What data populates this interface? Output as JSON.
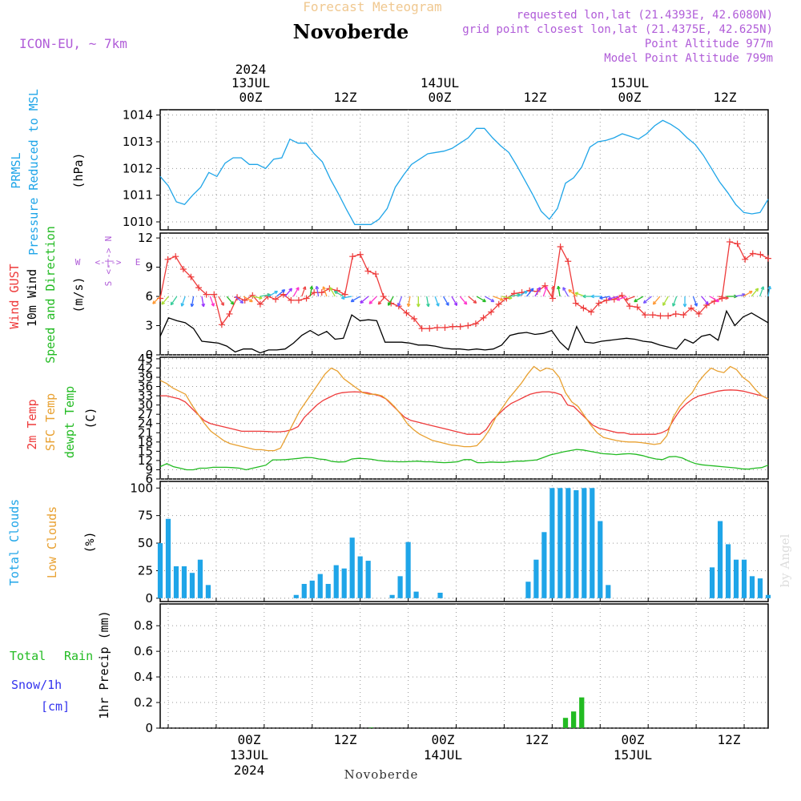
{
  "colors": {
    "pressure": "#1fa5e8",
    "gust": "#ee3a3a",
    "wind10m": "#000000",
    "label_green": "#22bb22",
    "temp2m": "#ee3a3a",
    "sfc_temp": "#e8a030",
    "dewpt": "#22bb22",
    "clouds": "#1fa5e8",
    "low_clouds": "#e8a030",
    "rain": "#22bb22",
    "snow": "#3333ee",
    "purple": "#b05cd8",
    "title_faded": "#f0c890",
    "grid": "#999999"
  },
  "header": {
    "forecast_title": "Forecast Meteogram",
    "location": "Novoberde",
    "model": "ICON-EU, ~ 7km",
    "requested": "requested lon,lat (21.4393E, 42.6080N)",
    "grid_point": "grid point closest lon,lat (21.4375E, 42.625N)",
    "point_alt": "Point Altitude 977m",
    "model_alt": "Model Point Altitude 799m"
  },
  "top_axis": {
    "year": "2024",
    "date1": "13JUL",
    "date2": "14JUL",
    "date3": "15JUL",
    "t00z_1": "00Z",
    "t12z_1": "12Z",
    "t00z_2": "00Z",
    "t12z_2": "12Z",
    "t00z_3": "00Z",
    "t12z_3": "12Z"
  },
  "bottom_axis": {
    "year": "2024",
    "date1": "13JUL",
    "date2": "14JUL",
    "date3": "15JUL",
    "t00z_1": "00Z",
    "t12z_1": "12Z",
    "t00z_2": "00Z",
    "t12z_2": "12Z",
    "t00z_3": "00Z",
    "t12z_3": "12Z",
    "footer": "Novoberde"
  },
  "watermark": "by Angel",
  "panel_labels": {
    "prmsl": "PRMSL",
    "pressure": "Pressure Reduced to MSL",
    "hpa": "(hPa)",
    "gust": "Wind GUST",
    "wind10m": "10m Wind",
    "speed_dir": "Speed and Direction",
    "ms": "(m/s)",
    "compass_n": "N",
    "compass_s": "S",
    "compass_w": "W",
    "compass_e": "E",
    "compass_arrow": "<-|->",
    "temp2m": "2m Temp",
    "sfc_temp": "SFC Temp",
    "dewpt": "dewpt Temp",
    "celsius": "(C)",
    "total_clouds": "Total Clouds",
    "low_clouds": "Low Clouds",
    "pct": "(%)",
    "total": "Total",
    "rain": "Rain",
    "snow": "Snow/1h",
    "cm": "[cm]",
    "precip": "1hr Precip (mm)"
  },
  "chart_data": [
    {
      "type": "line",
      "title": "PRMSL Pressure Reduced to MSL",
      "ylabel": "(hPa)",
      "ylim": [
        1009.7,
        1014.2
      ],
      "yticks": [
        1010,
        1011,
        1012,
        1013,
        1014
      ],
      "x_hours_start": -13,
      "x_hours_end": 63,
      "series": [
        {
          "name": "PRMSL",
          "values": [
            1011.7,
            1011.35,
            1010.75,
            1010.65,
            1011.0,
            1011.3,
            1011.85,
            1011.7,
            1012.2,
            1012.4,
            1012.4,
            1012.15,
            1012.15,
            1012.0,
            1012.35,
            1012.4,
            1013.1,
            1012.95,
            1012.95,
            1012.55,
            1012.25,
            1011.6,
            1011.05,
            1010.45,
            1009.9,
            1009.9,
            1009.9,
            1010.1,
            1010.5,
            1011.3,
            1011.75,
            1012.15,
            1012.35,
            1012.55,
            1012.6,
            1012.65,
            1012.75,
            1012.95,
            1013.15,
            1013.5,
            1013.5,
            1013.15,
            1012.85,
            1012.6,
            1012.1,
            1011.55,
            1011.0,
            1010.4,
            1010.1,
            1010.5,
            1011.45,
            1011.65,
            1012.05,
            1012.8,
            1013.0,
            1013.05,
            1013.15,
            1013.3,
            1013.2,
            1013.1,
            1013.3,
            1013.6,
            1013.8,
            1013.65,
            1013.45,
            1013.15,
            1012.9,
            1012.5,
            1012.0,
            1011.5,
            1011.1,
            1010.65,
            1010.35,
            1010.3,
            1010.35,
            1010.85
          ]
        }
      ]
    },
    {
      "type": "line",
      "title": "Wind GUST / 10m Wind Speed and Direction",
      "ylabel": "(m/s)",
      "ylim": [
        0,
        12.5
      ],
      "yticks": [
        0,
        3,
        6,
        9,
        12
      ],
      "x_hours_start": -13,
      "x_hours_end": 63,
      "series": [
        {
          "name": "Wind GUST",
          "values": [
            5.8,
            9.8,
            10.1,
            8.8,
            8.0,
            6.9,
            6.2,
            6.2,
            3.1,
            4.2,
            5.9,
            5.6,
            6.1,
            5.2,
            6.0,
            5.7,
            6.2,
            5.6,
            5.6,
            5.8,
            6.4,
            6.4,
            6.8,
            6.6,
            6.2,
            10.1,
            10.3,
            8.6,
            8.3,
            6.0,
            5.3,
            5.0,
            4.3,
            3.7,
            2.7,
            2.7,
            2.8,
            2.8,
            2.9,
            2.9,
            3.0,
            3.2,
            3.8,
            4.4,
            5.2,
            5.8,
            6.3,
            6.4,
            6.6,
            6.5,
            7.1,
            5.8,
            11.1,
            9.6,
            5.3,
            4.8,
            4.4,
            5.3,
            5.6,
            5.7,
            6.1,
            5.0,
            4.9,
            4.1,
            4.1,
            4.0,
            4.0,
            4.2,
            4.1,
            4.8,
            4.2,
            5.1,
            5.5,
            5.8,
            11.6,
            11.4,
            9.8,
            10.4,
            10.3,
            9.9
          ]
        },
        {
          "name": "10m Wind",
          "values": [
            1.9,
            3.8,
            3.5,
            3.3,
            2.7,
            1.4,
            1.3,
            1.2,
            0.9,
            0.3,
            0.6,
            0.6,
            0.2,
            0.5,
            0.5,
            0.6,
            1.2,
            2.0,
            2.5,
            2.0,
            2.4,
            1.6,
            1.7,
            4.1,
            3.5,
            3.6,
            3.5,
            1.3,
            1.3,
            1.3,
            1.2,
            1.0,
            1.0,
            0.9,
            0.7,
            0.6,
            0.6,
            0.5,
            0.6,
            0.5,
            0.6,
            1.0,
            2.0,
            2.2,
            2.3,
            2.1,
            2.2,
            2.5,
            1.3,
            0.5,
            2.9,
            1.3,
            1.2,
            1.4,
            1.5,
            1.6,
            1.7,
            1.6,
            1.4,
            1.3,
            1.0,
            0.8,
            0.6,
            1.6,
            1.2,
            1.9,
            2.1,
            1.5,
            4.5,
            3.0,
            3.9,
            4.3,
            3.8,
            3.3
          ]
        }
      ]
    },
    {
      "type": "line",
      "title": "2m Temp / SFC Temp / dewpt Temp",
      "ylabel": "(C)",
      "ylim": [
        6,
        45.5
      ],
      "yticks": [
        6,
        9,
        12,
        15,
        18,
        21,
        24,
        27,
        30,
        33,
        36,
        39,
        42,
        45
      ],
      "x_hours_start": -13,
      "x_hours_end": 63,
      "series": [
        {
          "name": "2m Temp",
          "values": [
            33,
            33,
            32.5,
            32,
            31,
            29,
            27,
            25,
            24,
            23.5,
            23,
            22.5,
            22,
            21.5,
            21.5,
            21.5,
            21.5,
            21.4,
            21.3,
            21.3,
            21.5,
            22,
            23,
            26,
            28,
            30,
            31.5,
            32.5,
            33.5,
            34,
            34.2,
            34.3,
            34.2,
            34,
            33.5,
            33,
            32,
            30,
            28,
            26,
            25,
            24.5,
            24,
            23.5,
            23,
            22.5,
            22,
            21.5,
            21,
            20.5,
            20.5,
            20.5,
            22,
            25,
            27,
            29,
            30.5,
            31.5,
            32.5,
            33.5,
            34,
            34.3,
            34.3,
            34,
            33.3,
            30,
            29.5,
            27.5,
            25.5,
            23.5,
            22.5,
            22,
            21.5,
            21,
            21,
            20.5,
            20.5,
            20.5,
            20.5,
            20.5,
            21,
            22,
            25.5,
            28.5,
            30.5,
            32,
            33,
            33.5,
            34,
            34.5,
            34.8,
            34.9,
            34.8,
            34.5,
            34,
            33.5,
            33,
            32
          ]
        },
        {
          "name": "SFC Temp",
          "values": [
            38,
            37,
            35.5,
            34.5,
            33.5,
            30,
            27,
            24,
            21.5,
            20,
            18.5,
            17.5,
            17,
            16.5,
            16,
            15.5,
            15.5,
            15.2,
            15.2,
            16,
            20,
            24,
            28,
            31,
            34,
            37,
            40,
            42,
            41,
            38.5,
            37,
            35.5,
            34,
            33.5,
            33.5,
            33,
            31.5,
            29.5,
            27,
            24,
            22,
            20.5,
            19.5,
            18.5,
            18,
            17.5,
            17,
            16.8,
            16.5,
            16.5,
            16.8,
            19,
            22,
            26,
            29,
            32,
            34.5,
            37,
            40,
            42.5,
            41,
            42,
            41.5,
            39,
            34,
            31,
            29.5,
            26.5,
            23.5,
            21,
            19.5,
            19,
            18.5,
            18.2,
            18,
            18,
            17.8,
            17.5,
            17.2,
            17.5,
            20,
            26,
            29.5,
            32,
            34,
            37.5,
            40,
            42,
            41,
            40.5,
            42.5,
            41.5,
            39,
            37.5,
            35,
            33,
            32
          ]
        },
        {
          "name": "dewpt Temp",
          "values": [
            10,
            11,
            10,
            9.5,
            9,
            9,
            9.5,
            9.5,
            9.8,
            9.8,
            9.8,
            9.7,
            9.5,
            9,
            9.5,
            10,
            10.5,
            12.2,
            12.2,
            12.3,
            12.5,
            12.7,
            13,
            12.9,
            12.5,
            12.3,
            11.7,
            11.5,
            11.6,
            12.5,
            12.7,
            12.6,
            12.4,
            12,
            11.8,
            11.7,
            11.6,
            11.6,
            11.7,
            11.8,
            11.6,
            11.6,
            11.4,
            11.3,
            11.4,
            11.6,
            12.3,
            12.3,
            11.3,
            11.3,
            11.5,
            11.4,
            11.4,
            11.6,
            11.8,
            11.8,
            12,
            12.2,
            13,
            13.8,
            14.3,
            14.8,
            15.2,
            15.6,
            15.4,
            15,
            14.6,
            14.2,
            14.1,
            13.9,
            14.1,
            14.2,
            14,
            13.6,
            13,
            12.5,
            12.3,
            13.2,
            13.3,
            12.8,
            11.8,
            11,
            10.6,
            10.4,
            10.2,
            10,
            9.8,
            9.6,
            9.3,
            9.2,
            9.5,
            9.7,
            10.5
          ]
        }
      ]
    },
    {
      "type": "bar",
      "title": "Total Clouds / Low Clouds",
      "ylabel": "(%)",
      "ylim": [
        -3,
        106
      ],
      "yticks": [
        0,
        25,
        50,
        75,
        100
      ],
      "x_hours_start": -13,
      "x_hours_end": 63,
      "series": [
        {
          "name": "Total Clouds",
          "values": [
            50,
            72,
            29,
            29,
            23,
            35,
            12,
            0,
            0,
            0,
            0,
            0,
            0,
            0,
            0,
            0,
            0,
            3,
            13,
            16,
            22,
            13,
            30,
            27,
            55,
            38,
            34,
            0,
            0,
            3,
            20,
            51,
            6,
            0,
            0,
            5,
            0,
            0,
            0,
            0,
            0,
            0,
            0,
            0,
            0,
            0,
            15,
            35,
            60,
            100,
            100,
            100,
            98,
            100,
            100,
            70,
            12,
            0,
            0,
            0,
            0,
            0,
            0,
            0,
            0,
            0,
            0,
            0,
            0,
            28,
            70,
            49,
            35,
            35,
            20,
            18,
            3
          ]
        },
        {
          "name": "Low Clouds",
          "values": [
            0,
            0,
            0,
            0,
            0,
            0,
            0,
            0,
            0,
            0,
            0,
            0,
            0,
            0,
            0,
            0,
            0,
            0,
            0,
            0,
            0,
            0,
            0,
            0,
            0,
            0,
            0,
            0,
            0,
            0,
            0,
            0,
            0,
            0,
            0,
            0,
            0,
            0,
            0,
            0,
            0,
            0,
            0,
            0,
            0,
            0,
            0,
            0,
            0,
            0,
            0,
            0,
            0,
            0,
            0,
            0,
            0,
            0,
            0,
            0,
            0,
            0,
            0,
            0,
            0,
            0,
            0,
            0,
            0,
            0,
            0,
            0,
            0,
            0,
            0,
            0,
            0
          ]
        }
      ]
    },
    {
      "type": "bar",
      "title": "Total Rain / Snow 1hr Precip",
      "ylabel": "1hr Precip (mm)",
      "ylim": [
        0,
        0.97
      ],
      "yticks": [
        0,
        0.2,
        0.4,
        0.6,
        0.8
      ],
      "x_hours_start": -13,
      "x_hours_end": 63,
      "series": [
        {
          "name": "Total Rain",
          "values": [
            0,
            0,
            0,
            0,
            0,
            0,
            0,
            0,
            0,
            0,
            0,
            0,
            0,
            0,
            0,
            0,
            0,
            0,
            0,
            0,
            0,
            0,
            0,
            0,
            0,
            0,
            0.005,
            0,
            0,
            0,
            0,
            0,
            0,
            0,
            0,
            0,
            0,
            0,
            0,
            0,
            0,
            0,
            0,
            0,
            0,
            0,
            0,
            0,
            0,
            0,
            0.08,
            0.13,
            0.24,
            0,
            0,
            0,
            0,
            0,
            0,
            0,
            0,
            0,
            0,
            0,
            0,
            0,
            0,
            0,
            0,
            0,
            0,
            0,
            0,
            0,
            0,
            0
          ]
        },
        {
          "name": "Snow/1h",
          "values": [
            0,
            0,
            0,
            0,
            0,
            0,
            0,
            0,
            0,
            0,
            0,
            0,
            0,
            0,
            0,
            0,
            0,
            0,
            0,
            0,
            0,
            0,
            0,
            0,
            0,
            0,
            0,
            0,
            0,
            0,
            0,
            0,
            0,
            0,
            0,
            0,
            0,
            0,
            0,
            0,
            0,
            0,
            0,
            0,
            0,
            0,
            0,
            0,
            0,
            0,
            0,
            0,
            0,
            0,
            0,
            0,
            0,
            0,
            0,
            0,
            0,
            0,
            0,
            0,
            0,
            0,
            0,
            0,
            0,
            0,
            0,
            0,
            0,
            0,
            0,
            0
          ]
        }
      ]
    }
  ]
}
